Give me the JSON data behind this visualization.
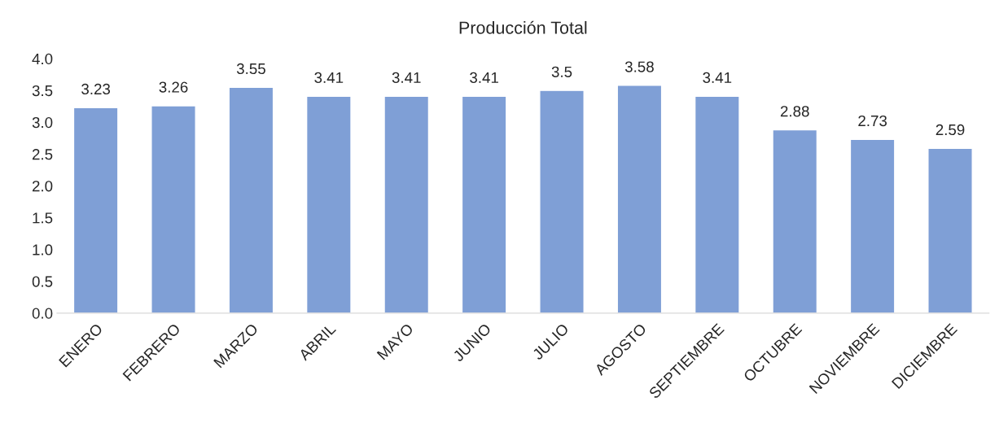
{
  "chart_data": {
    "type": "bar",
    "title": "Producción Total",
    "categories": [
      "ENERO",
      "FEBRERO",
      "MARZO",
      "ABRIL",
      "MAYO",
      "JUNIO",
      "JULIO",
      "AGOSTO",
      "SEPTIEMBRE",
      "OCTUBRE",
      "NOVIEMBRE",
      "DICIEMBRE"
    ],
    "values": [
      3.23,
      3.26,
      3.55,
      3.41,
      3.41,
      3.41,
      3.5,
      3.58,
      3.41,
      2.88,
      2.73,
      2.59
    ],
    "color": "#7f9fd6",
    "ylim": [
      0,
      4
    ],
    "yticks": [
      {
        "value": 0,
        "label": "0.0"
      },
      {
        "value": 0.5,
        "label": "0.5"
      },
      {
        "value": 1,
        "label": "1.0"
      },
      {
        "value": 1.5,
        "label": "1.5"
      },
      {
        "value": 2,
        "label": "2.0"
      },
      {
        "value": 2.5,
        "label": "2.5"
      },
      {
        "value": 3,
        "label": "3.0"
      },
      {
        "value": 3.5,
        "label": "3.5"
      },
      {
        "value": 4,
        "label": "4.0"
      }
    ],
    "data_labels": true,
    "grid": false,
    "legend": false
  }
}
